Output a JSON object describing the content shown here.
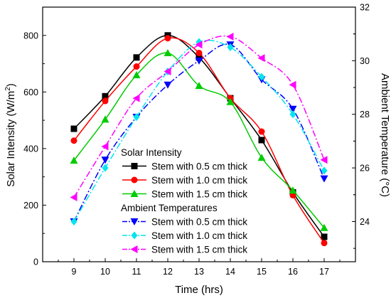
{
  "chart_data": {
    "type": "line",
    "x": [
      9,
      10,
      11,
      12,
      13,
      14,
      15,
      16,
      17
    ],
    "xlabel": "Time (hrs)",
    "ylabel_left": "Solar Intensity (W/m²)",
    "ylabel_left_main": "Solar Intensity (W/m",
    "ylabel_left_sup": "2",
    "ylabel_left_close": ")",
    "ylabel_right": "Ambient Temperature (°C)",
    "xlim": [
      8,
      18
    ],
    "ylim_left": [
      0,
      900
    ],
    "ylim_right": [
      22.5,
      32
    ],
    "xticks": [
      "9",
      "10",
      "11",
      "12",
      "13",
      "14",
      "15",
      "16",
      "17"
    ],
    "yticks_left": [
      "0",
      "200",
      "400",
      "600",
      "800"
    ],
    "yticks_right": [
      "24",
      "26",
      "28",
      "30",
      "32"
    ],
    "grid": false,
    "legend_position": "lower-left",
    "legend_groups": [
      {
        "title": "Solar Intensity",
        "series": [
          {
            "name": "Stem with 0.5 cm thick",
            "axis": "left",
            "color": "#000000",
            "line": "solid",
            "marker": "square",
            "values": [
              470,
              585,
              722,
              800,
              722,
              578,
              430,
              245,
              88
            ]
          },
          {
            "name": "Stem with 1.0 cm thick",
            "axis": "left",
            "color": "#ff0000",
            "line": "solid",
            "marker": "circle",
            "values": [
              428,
              568,
              690,
              790,
              738,
              578,
              460,
              235,
              66
            ]
          },
          {
            "name": "Stem with 1.5 cm thick",
            "axis": "left",
            "color": "#00cc00",
            "line": "solid",
            "marker": "triangle-up",
            "values": [
              358,
              503,
              660,
              738,
              622,
              565,
              368,
              252,
              120
            ]
          }
        ]
      },
      {
        "title": "Ambient Temperatures",
        "series": [
          {
            "name": "Stem with 0.5 cm thick",
            "axis": "right",
            "color": "#0000ff",
            "line": "dashdot",
            "marker": "triangle-down",
            "values": [
              24.0,
              26.3,
              27.9,
              29.1,
              30.0,
              30.6,
              29.3,
              28.2,
              25.6
            ]
          },
          {
            "name": "Stem with 1.0 cm thick",
            "axis": "right",
            "color": "#00e5ee",
            "line": "dashdot",
            "marker": "diamond",
            "values": [
              24.0,
              26.0,
              27.9,
              29.6,
              30.7,
              30.5,
              29.4,
              28.0,
              25.9
            ]
          },
          {
            "name": "Stem with 1.5 cm thick",
            "axis": "right",
            "color": "#ff00ff",
            "line": "dashdot",
            "marker": "triangle-left",
            "values": [
              24.9,
              26.8,
              28.6,
              29.6,
              30.6,
              30.9,
              30.1,
              29.1,
              26.3
            ]
          }
        ]
      }
    ]
  }
}
